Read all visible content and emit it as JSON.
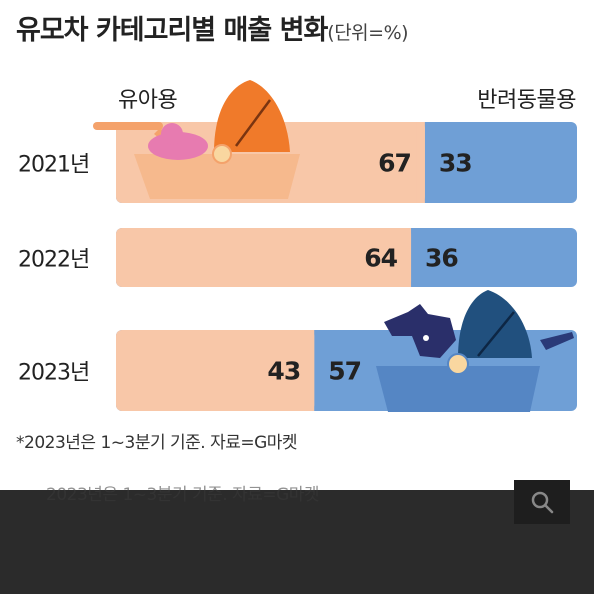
{
  "title": "유모차 카테고리별 매출 변화",
  "unit": "(단위=%)",
  "legend": {
    "left": "유아용",
    "right": "반려동물용"
  },
  "footnote": "*2023년은 1~3분기 기준. 자료=G마켓",
  "ghost_text": "2023년은 1~3분기 기준. 자료=G마켓",
  "icons": {
    "baby": "baby-stroller-icon",
    "pet": "pet-stroller-icon",
    "search": "search-icon"
  },
  "colors": {
    "baby": "#f8c7a8",
    "pet": "#6f9fd6",
    "text": "#222222"
  },
  "chart_data": {
    "type": "bar",
    "orientation": "horizontal",
    "stacked": true,
    "categories": [
      "2021년",
      "2022년",
      "2023년"
    ],
    "series": [
      {
        "name": "유아용",
        "values": [
          67,
          64,
          43
        ]
      },
      {
        "name": "반려동물용",
        "values": [
          33,
          36,
          57
        ]
      }
    ],
    "xlim": [
      0,
      100
    ],
    "unit": "%",
    "grid": false
  }
}
